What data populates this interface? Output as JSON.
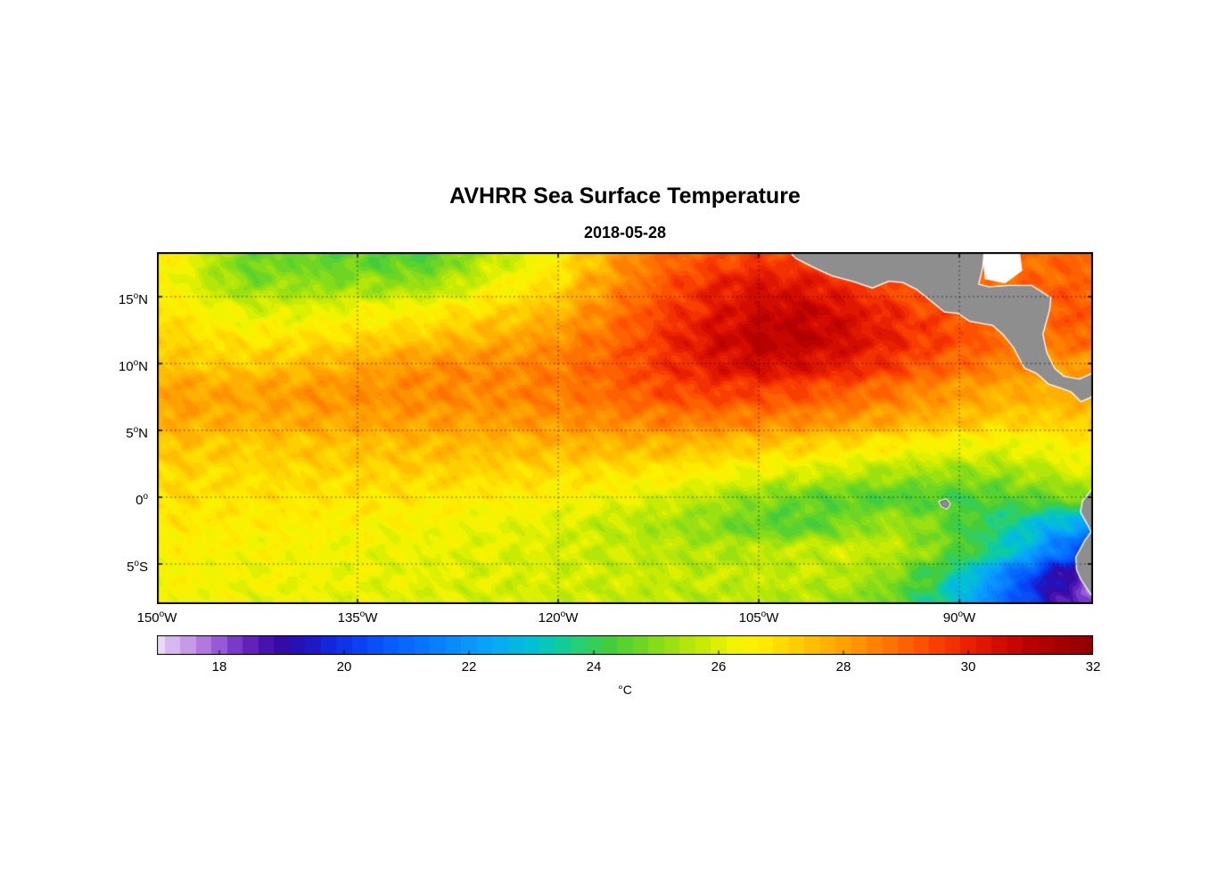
{
  "chart_data": {
    "type": "heatmap",
    "title": "AVHRR Sea Surface Temperature",
    "subtitle": "2018-05-28",
    "lon_range": [
      -150,
      -80
    ],
    "lat_range": [
      -8,
      18.333
    ],
    "lon_ticks": [
      -150,
      -135,
      -120,
      -105,
      -90
    ],
    "lat_ticks": [
      15,
      10,
      5,
      0,
      -5
    ],
    "lon_tick_labels": [
      {
        "deg": "150",
        "sup": "o",
        "dir": "W"
      },
      {
        "deg": "135",
        "sup": "o",
        "dir": "W"
      },
      {
        "deg": "120",
        "sup": "o",
        "dir": "W"
      },
      {
        "deg": "105",
        "sup": "o",
        "dir": "W"
      },
      {
        "deg": "90",
        "sup": "o",
        "dir": "W"
      }
    ],
    "lat_tick_labels": [
      {
        "deg": "15",
        "sup": "o",
        "dir": "N"
      },
      {
        "deg": "10",
        "sup": "o",
        "dir": "N"
      },
      {
        "deg": "5",
        "sup": "o",
        "dir": "N"
      },
      {
        "deg": "0",
        "sup": "o",
        "dir": ""
      },
      {
        "deg": "5",
        "sup": "o",
        "dir": "S"
      }
    ],
    "colorbar": {
      "min": 17,
      "max": 32,
      "ticks": [
        "18",
        "20",
        "22",
        "24",
        "26",
        "28",
        "30",
        "32"
      ],
      "tick_values": [
        18,
        20,
        22,
        24,
        26,
        28,
        30,
        32
      ],
      "label": "°C"
    },
    "background": "#ffffff",
    "land_color": "#8e8e8e",
    "coastline_color": "#ffffff",
    "frame_color": "#000000",
    "colormap_stops": [
      [
        17.0,
        "#EADAF5"
      ],
      [
        17.4,
        "#CDA8EC"
      ],
      [
        17.8,
        "#AC74DC"
      ],
      [
        18.2,
        "#7F40CB"
      ],
      [
        18.6,
        "#5517B6"
      ],
      [
        19.0,
        "#330CA6"
      ],
      [
        19.4,
        "#1F14BE"
      ],
      [
        19.8,
        "#1228DC"
      ],
      [
        20.2,
        "#0B3FF0"
      ],
      [
        20.6,
        "#0755FC"
      ],
      [
        21.0,
        "#0767FF"
      ],
      [
        21.5,
        "#087FFF"
      ],
      [
        22.0,
        "#0997FF"
      ],
      [
        22.5,
        "#07ACF2"
      ],
      [
        23.0,
        "#03BFD4"
      ],
      [
        23.4,
        "#0BCBA4"
      ],
      [
        23.8,
        "#2BCF6E"
      ],
      [
        24.2,
        "#3FCC40"
      ],
      [
        24.6,
        "#5FD32B"
      ],
      [
        25.0,
        "#84DC19"
      ],
      [
        25.4,
        "#A9E40C"
      ],
      [
        25.8,
        "#CDEC03"
      ],
      [
        26.2,
        "#EEF400"
      ],
      [
        26.6,
        "#FEF000"
      ],
      [
        27.0,
        "#FFDC00"
      ],
      [
        27.4,
        "#FFC500"
      ],
      [
        27.8,
        "#FFAD00"
      ],
      [
        28.2,
        "#FF9500"
      ],
      [
        28.6,
        "#FF7B00"
      ],
      [
        29.0,
        "#FF6100"
      ],
      [
        29.4,
        "#FB4600"
      ],
      [
        29.8,
        "#F12C00"
      ],
      [
        30.2,
        "#E11700"
      ],
      [
        30.6,
        "#CE0800"
      ],
      [
        31.0,
        "#B80100"
      ],
      [
        31.5,
        "#A30000"
      ],
      [
        32.0,
        "#8F0000"
      ]
    ],
    "grid": {
      "lons": [
        -150,
        -147.5,
        -145,
        -142.5,
        -140,
        -137.5,
        -135,
        -132.5,
        -130,
        -127.5,
        -125,
        -122.5,
        -120,
        -117.5,
        -115,
        -112.5,
        -110,
        -107.5,
        -105,
        -102.5,
        -100,
        -97.5,
        -95,
        -92.5,
        -90,
        -87.5,
        -85,
        -82.5,
        -80
      ],
      "lats": [
        18,
        16,
        14,
        12,
        10,
        8,
        6,
        4,
        2,
        0,
        -2,
        -4,
        -6,
        -8
      ],
      "sst_c": [
        [
          26.8,
          26.2,
          25.2,
          24.6,
          24.8,
          24.5,
          24.6,
          24.4,
          24.3,
          25.0,
          25.6,
          26.0,
          26.6,
          27.4,
          28.2,
          28.8,
          29.0,
          29.3,
          29.5,
          29.4,
          29.2,
          29.0,
          28.8,
          28.6,
          28.5,
          28.6,
          28.8,
          28.9,
          29.0
        ],
        [
          26.6,
          26.0,
          25.3,
          25.0,
          25.2,
          25.0,
          25.2,
          25.1,
          25.2,
          25.6,
          26.2,
          26.6,
          27.0,
          27.8,
          28.4,
          29.0,
          29.6,
          30.0,
          30.3,
          30.2,
          30.0,
          29.6,
          29.2,
          29.0,
          28.8,
          28.8,
          28.9,
          29.0,
          29.0
        ],
        [
          26.9,
          26.6,
          26.2,
          26.0,
          26.0,
          26.1,
          26.3,
          26.4,
          26.5,
          26.8,
          27.0,
          27.3,
          27.6,
          28.2,
          28.8,
          29.4,
          29.8,
          30.3,
          30.6,
          30.8,
          30.6,
          30.2,
          29.8,
          29.4,
          29.2,
          29.0,
          29.0,
          29.1,
          29.2
        ],
        [
          27.2,
          27.0,
          26.8,
          26.7,
          26.8,
          26.9,
          27.0,
          27.2,
          27.3,
          27.5,
          27.7,
          27.9,
          28.2,
          28.6,
          29.0,
          29.6,
          30.2,
          30.6,
          30.9,
          31.0,
          30.8,
          30.4,
          30.0,
          29.6,
          29.3,
          29.0,
          28.8,
          28.8,
          29.0
        ],
        [
          27.4,
          27.3,
          27.2,
          27.3,
          27.4,
          27.6,
          27.8,
          28.0,
          28.2,
          28.3,
          28.3,
          28.4,
          28.6,
          28.9,
          29.2,
          29.6,
          30.0,
          30.4,
          30.6,
          30.5,
          30.3,
          30.0,
          29.6,
          29.2,
          28.9,
          28.6,
          28.3,
          28.1,
          28.2
        ],
        [
          28.0,
          28.0,
          27.9,
          28.0,
          28.1,
          28.2,
          28.3,
          28.3,
          28.4,
          28.4,
          28.4,
          28.5,
          28.6,
          28.8,
          29.0,
          29.3,
          29.5,
          29.6,
          29.5,
          29.4,
          29.2,
          29.0,
          28.7,
          28.4,
          28.1,
          27.9,
          27.8,
          27.8,
          27.9
        ],
        [
          27.9,
          27.9,
          27.8,
          27.8,
          27.9,
          28.0,
          28.0,
          28.1,
          28.1,
          28.1,
          28.1,
          28.2,
          28.3,
          28.4,
          28.5,
          28.6,
          28.7,
          28.7,
          28.6,
          28.5,
          28.4,
          28.2,
          28.0,
          27.8,
          27.6,
          27.4,
          27.3,
          27.3,
          27.4
        ],
        [
          27.4,
          27.4,
          27.3,
          27.3,
          27.4,
          27.4,
          27.5,
          27.5,
          27.6,
          27.6,
          27.6,
          27.6,
          27.7,
          27.7,
          27.7,
          27.7,
          27.6,
          27.5,
          27.4,
          27.3,
          27.1,
          26.9,
          26.7,
          26.5,
          26.4,
          26.3,
          26.3,
          26.5,
          26.8
        ],
        [
          27.1,
          27.1,
          27.0,
          27.0,
          27.1,
          27.1,
          27.1,
          27.2,
          27.2,
          27.2,
          27.1,
          27.1,
          27.0,
          27.0,
          26.9,
          26.8,
          26.7,
          26.5,
          26.3,
          26.1,
          25.9,
          25.7,
          25.5,
          25.4,
          25.3,
          25.3,
          25.5,
          25.8,
          26.2
        ],
        [
          26.9,
          26.9,
          26.8,
          26.8,
          26.8,
          26.8,
          26.8,
          26.8,
          26.7,
          26.7,
          26.6,
          26.6,
          26.5,
          26.4,
          26.2,
          26.0,
          25.7,
          25.4,
          25.1,
          24.8,
          24.6,
          24.5,
          24.4,
          24.4,
          24.3,
          24.4,
          24.6,
          24.8,
          25.0
        ],
        [
          26.7,
          26.7,
          26.6,
          26.6,
          26.6,
          26.5,
          26.5,
          26.4,
          26.4,
          26.3,
          26.2,
          26.1,
          26.0,
          25.8,
          25.6,
          25.4,
          25.2,
          24.9,
          24.6,
          24.4,
          24.6,
          25.0,
          25.3,
          25.0,
          24.4,
          23.8,
          23.2,
          22.6,
          22.2
        ],
        [
          26.5,
          26.5,
          26.4,
          26.4,
          26.4,
          26.3,
          26.3,
          26.2,
          26.2,
          26.1,
          26.1,
          26.0,
          25.9,
          25.8,
          25.7,
          25.6,
          25.5,
          25.5,
          25.6,
          25.7,
          25.8,
          25.8,
          25.6,
          25.1,
          24.4,
          23.6,
          22.6,
          21.2,
          19.8
        ],
        [
          26.4,
          26.4,
          26.3,
          26.3,
          26.3,
          26.2,
          26.2,
          26.1,
          26.1,
          26.0,
          26.0,
          25.9,
          25.9,
          25.8,
          25.8,
          25.7,
          25.7,
          25.7,
          25.7,
          25.7,
          25.6,
          25.4,
          25.0,
          24.2,
          23.2,
          22.0,
          20.4,
          19.0,
          18.2
        ],
        [
          26.4,
          26.3,
          26.3,
          26.2,
          26.2,
          26.2,
          26.1,
          26.1,
          26.0,
          26.0,
          25.9,
          25.9,
          25.8,
          25.8,
          25.7,
          25.7,
          25.6,
          25.6,
          25.6,
          25.5,
          25.4,
          25.1,
          24.6,
          23.8,
          22.8,
          21.6,
          20.2,
          18.8,
          18.0
        ]
      ]
    },
    "land_polygons": [
      [
        [
          -103.7,
          19.5
        ],
        [
          -102.2,
          17.9
        ],
        [
          -100.8,
          17.2
        ],
        [
          -99.5,
          16.6
        ],
        [
          -98.0,
          16.2
        ],
        [
          -96.5,
          15.7
        ],
        [
          -95.3,
          16.2
        ],
        [
          -94.2,
          16.1
        ],
        [
          -93.2,
          15.6
        ],
        [
          -92.2,
          14.8
        ],
        [
          -91.1,
          13.9
        ],
        [
          -90.1,
          13.8
        ],
        [
          -89.2,
          13.2
        ],
        [
          -88.1,
          13.0
        ],
        [
          -87.5,
          12.9
        ],
        [
          -86.7,
          12.2
        ],
        [
          -85.9,
          11.2
        ],
        [
          -85.7,
          10.8
        ],
        [
          -85.1,
          9.7
        ],
        [
          -84.2,
          9.3
        ],
        [
          -83.3,
          8.5
        ],
        [
          -82.4,
          8.2
        ],
        [
          -81.6,
          7.9
        ],
        [
          -80.9,
          7.2
        ],
        [
          -80.2,
          7.5
        ],
        [
          -79.8,
          8.4
        ],
        [
          -79.3,
          8.9
        ],
        [
          -78.5,
          8.6
        ],
        [
          -78.0,
          8.1
        ],
        [
          -77.5,
          7.4
        ],
        [
          -77.3,
          6.2
        ],
        [
          -77.5,
          4.8
        ],
        [
          -77.2,
          3.6
        ],
        [
          -77.9,
          2.3
        ],
        [
          -78.8,
          1.5
        ],
        [
          -79.2,
          0.9
        ],
        [
          -80.1,
          0.5
        ],
        [
          -80.75,
          -0.3
        ],
        [
          -80.9,
          -1.1
        ],
        [
          -80.4,
          -2.0
        ],
        [
          -80.1,
          -2.6
        ],
        [
          -80.6,
          -3.3
        ],
        [
          -81.25,
          -4.5
        ],
        [
          -81.2,
          -5.4
        ],
        [
          -80.9,
          -6.1
        ],
        [
          -80.3,
          -7.0
        ],
        [
          -79.6,
          -8.0
        ],
        [
          -79.2,
          -8.8
        ],
        [
          -70.0,
          -8.8
        ],
        [
          -70.0,
          11.0
        ],
        [
          -72.0,
          12.2
        ],
        [
          -74.2,
          11.2
        ],
        [
          -75.6,
          10.3
        ],
        [
          -76.9,
          8.7
        ],
        [
          -77.6,
          8.8
        ],
        [
          -78.4,
          9.4
        ],
        [
          -79.4,
          9.6
        ],
        [
          -80.1,
          9.2
        ],
        [
          -81.0,
          8.8
        ],
        [
          -82.2,
          9.0
        ],
        [
          -82.9,
          9.6
        ],
        [
          -83.5,
          10.8
        ],
        [
          -83.8,
          12.2
        ],
        [
          -83.3,
          14.0
        ],
        [
          -83.2,
          14.9
        ],
        [
          -84.6,
          15.8
        ],
        [
          -86.3,
          15.8
        ],
        [
          -87.8,
          15.7
        ],
        [
          -88.6,
          15.9
        ],
        [
          -88.3,
          17.2
        ],
        [
          -88.2,
          18.2
        ],
        [
          -88.4,
          19.5
        ]
      ]
    ],
    "islands": [
      [
        [
          -91.45,
          -0.35
        ],
        [
          -91.0,
          -0.2
        ],
        [
          -90.75,
          -0.5
        ],
        [
          -90.95,
          -0.8
        ],
        [
          -91.3,
          -0.65
        ]
      ]
    ],
    "no_data_patches": [
      [
        [
          -88.2,
          18.6
        ],
        [
          -88.0,
          16.4
        ],
        [
          -86.6,
          16.1
        ],
        [
          -85.4,
          17.0
        ],
        [
          -85.6,
          18.6
        ]
      ]
    ]
  }
}
